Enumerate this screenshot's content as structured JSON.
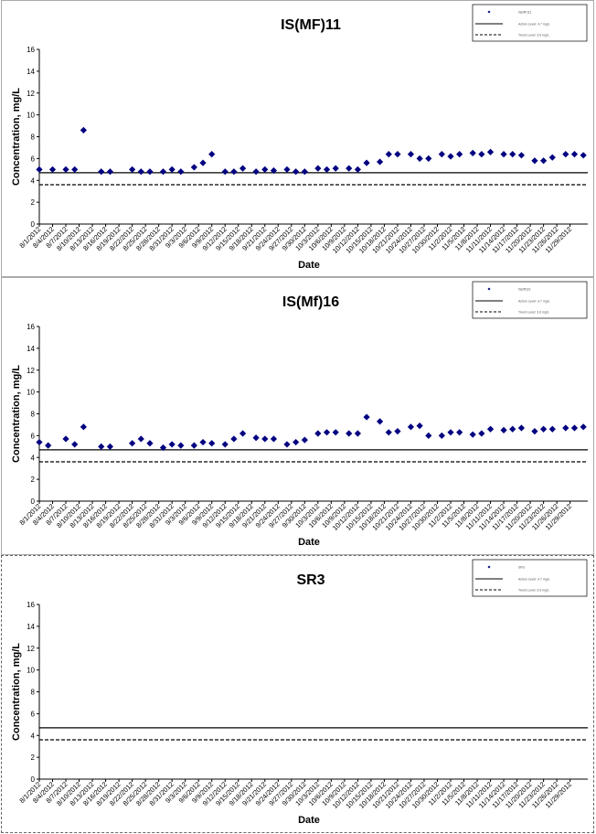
{
  "dates": [
    "8/1/2012",
    "8/4/2012",
    "8/7/2012",
    "8/10/2012",
    "8/13/2012",
    "8/16/2012",
    "8/19/2012",
    "8/22/2012",
    "8/25/2012",
    "8/28/2012",
    "8/31/2012",
    "9/3/2012",
    "9/6/2012",
    "9/9/2012",
    "9/12/2012",
    "9/15/2012",
    "9/18/2012",
    "9/21/2012",
    "9/24/2012",
    "9/27/2012",
    "9/30/2012",
    "10/3/2012",
    "10/6/2012",
    "10/9/2012",
    "10/12/2012",
    "10/15/2012",
    "10/18/2012",
    "10/21/2012",
    "10/24/2012",
    "10/27/2012",
    "10/30/2012",
    "11/2/2012",
    "11/5/2012",
    "11/8/2012",
    "11/11/2012",
    "11/14/2012",
    "11/17/2012",
    "11/20/2012",
    "11/23/2012",
    "11/26/2012",
    "11/29/2012"
  ],
  "chart_data": [
    {
      "type": "scatter",
      "title": "IS(MF)11",
      "xlabel": "Date",
      "ylabel": "Concentration, mg/L",
      "ylim": [
        0,
        16
      ],
      "yticks": [
        0,
        2,
        4,
        6,
        8,
        10,
        12,
        14,
        16
      ],
      "x_axis": "dates 8/1/2012 – 11/30/2012, tick labels every 3 days",
      "legend_position": "top-right",
      "legend": [
        "IS(MF)11",
        "Action Level: 4.7 mg/L",
        "Trend Level: 3.6 mg/L"
      ],
      "series": [
        {
          "name": "IS(MF)11",
          "marker": "diamond",
          "color": "#000080",
          "points": [
            [
              "8/1/2012",
              5.0
            ],
            [
              "8/4/2012",
              5.0
            ],
            [
              "8/7/2012",
              5.0
            ],
            [
              "8/9/2012",
              5.0
            ],
            [
              "8/11/2012",
              8.6
            ],
            [
              "8/15/2012",
              4.8
            ],
            [
              "8/17/2012",
              4.8
            ],
            [
              "8/22/2012",
              5.0
            ],
            [
              "8/24/2012",
              4.8
            ],
            [
              "8/26/2012",
              4.8
            ],
            [
              "8/29/2012",
              4.8
            ],
            [
              "8/31/2012",
              5.0
            ],
            [
              "9/2/2012",
              4.8
            ],
            [
              "9/5/2012",
              5.2
            ],
            [
              "9/7/2012",
              5.6
            ],
            [
              "9/9/2012",
              6.4
            ],
            [
              "9/12/2012",
              4.8
            ],
            [
              "9/14/2012",
              4.8
            ],
            [
              "9/16/2012",
              5.1
            ],
            [
              "9/19/2012",
              4.8
            ],
            [
              "9/21/2012",
              5.0
            ],
            [
              "9/23/2012",
              4.9
            ],
            [
              "9/26/2012",
              5.0
            ],
            [
              "9/28/2012",
              4.8
            ],
            [
              "9/30/2012",
              4.8
            ],
            [
              "10/3/2012",
              5.1
            ],
            [
              "10/5/2012",
              5.0
            ],
            [
              "10/7/2012",
              5.1
            ],
            [
              "10/10/2012",
              5.1
            ],
            [
              "10/12/2012",
              5.0
            ],
            [
              "10/14/2012",
              5.6
            ],
            [
              "10/17/2012",
              5.7
            ],
            [
              "10/19/2012",
              6.4
            ],
            [
              "10/21/2012",
              6.4
            ],
            [
              "10/24/2012",
              6.4
            ],
            [
              "10/26/2012",
              6.0
            ],
            [
              "10/28/2012",
              6.0
            ],
            [
              "10/31/2012",
              6.4
            ],
            [
              "11/2/2012",
              6.2
            ],
            [
              "11/4/2012",
              6.4
            ],
            [
              "11/7/2012",
              6.5
            ],
            [
              "11/9/2012",
              6.4
            ],
            [
              "11/11/2012",
              6.6
            ],
            [
              "11/14/2012",
              6.4
            ],
            [
              "11/16/2012",
              6.4
            ],
            [
              "11/18/2012",
              6.3
            ],
            [
              "11/21/2012",
              5.8
            ],
            [
              "11/23/2012",
              5.8
            ],
            [
              "11/25/2012",
              6.1
            ],
            [
              "11/28/2012",
              6.4
            ],
            [
              "11/30/2012",
              6.4
            ],
            [
              "12/2/2012",
              6.3
            ]
          ]
        },
        {
          "name": "Action Level: 4.7 mg/L",
          "style": "solid",
          "color": "#000000",
          "value": 4.7
        },
        {
          "name": "Trend Level: 3.6 mg/L",
          "style": "dashed",
          "color": "#000000",
          "value": 3.6
        }
      ]
    },
    {
      "type": "scatter",
      "title": "IS(Mf)16",
      "xlabel": "Date",
      "ylabel": "Concentration, mg/L",
      "ylim": [
        0,
        16
      ],
      "yticks": [
        0,
        2,
        4,
        6,
        8,
        10,
        12,
        14,
        16
      ],
      "x_axis": "dates 8/1/2012 – 11/30/2012, tick labels every 3 days",
      "legend_position": "top-right",
      "legend": [
        "IS(Mf)16",
        "Action Level: 4.7 mg/L",
        "Trend Level: 3.6 mg/L"
      ],
      "series": [
        {
          "name": "IS(Mf)16",
          "marker": "diamond",
          "color": "#000080",
          "points": [
            [
              "8/1/2012",
              5.4
            ],
            [
              "8/3/2012",
              5.1
            ],
            [
              "8/7/2012",
              5.7
            ],
            [
              "8/9/2012",
              5.2
            ],
            [
              "8/11/2012",
              6.8
            ],
            [
              "8/15/2012",
              5.0
            ],
            [
              "8/17/2012",
              5.0
            ],
            [
              "8/22/2012",
              5.3
            ],
            [
              "8/24/2012",
              5.7
            ],
            [
              "8/26/2012",
              5.3
            ],
            [
              "8/29/2012",
              4.9
            ],
            [
              "8/31/2012",
              5.2
            ],
            [
              "9/2/2012",
              5.1
            ],
            [
              "9/5/2012",
              5.1
            ],
            [
              "9/7/2012",
              5.4
            ],
            [
              "9/9/2012",
              5.3
            ],
            [
              "9/12/2012",
              5.2
            ],
            [
              "9/14/2012",
              5.7
            ],
            [
              "9/16/2012",
              6.2
            ],
            [
              "9/19/2012",
              5.8
            ],
            [
              "9/21/2012",
              5.7
            ],
            [
              "9/23/2012",
              5.7
            ],
            [
              "9/26/2012",
              5.2
            ],
            [
              "9/28/2012",
              5.4
            ],
            [
              "9/30/2012",
              5.6
            ],
            [
              "10/3/2012",
              6.2
            ],
            [
              "10/5/2012",
              6.3
            ],
            [
              "10/7/2012",
              6.3
            ],
            [
              "10/10/2012",
              6.2
            ],
            [
              "10/12/2012",
              6.2
            ],
            [
              "10/14/2012",
              7.7
            ],
            [
              "10/17/2012",
              7.3
            ],
            [
              "10/19/2012",
              6.3
            ],
            [
              "10/21/2012",
              6.4
            ],
            [
              "10/24/2012",
              6.8
            ],
            [
              "10/26/2012",
              6.9
            ],
            [
              "10/28/2012",
              6.0
            ],
            [
              "10/31/2012",
              6.0
            ],
            [
              "11/2/2012",
              6.3
            ],
            [
              "11/4/2012",
              6.3
            ],
            [
              "11/7/2012",
              6.1
            ],
            [
              "11/9/2012",
              6.2
            ],
            [
              "11/11/2012",
              6.6
            ],
            [
              "11/14/2012",
              6.5
            ],
            [
              "11/16/2012",
              6.6
            ],
            [
              "11/18/2012",
              6.7
            ],
            [
              "11/21/2012",
              6.4
            ],
            [
              "11/23/2012",
              6.6
            ],
            [
              "11/25/2012",
              6.6
            ],
            [
              "11/28/2012",
              6.7
            ],
            [
              "11/30/2012",
              6.7
            ],
            [
              "12/2/2012",
              6.8
            ]
          ]
        },
        {
          "name": "Action Level: 4.7 mg/L",
          "style": "solid",
          "color": "#000000",
          "value": 4.7
        },
        {
          "name": "Trend Level: 3.6 mg/L",
          "style": "dashed",
          "color": "#000000",
          "value": 3.6
        }
      ]
    },
    {
      "type": "scatter",
      "title": "SR3",
      "xlabel": "Date",
      "ylabel": "Concentration, mg/L",
      "ylim": [
        0,
        16
      ],
      "yticks": [
        0,
        2,
        4,
        6,
        8,
        10,
        12,
        14,
        16
      ],
      "x_axis": "dates 8/1/2012 – 11/30/2012, tick labels every 3 days",
      "legend_position": "top-right",
      "legend": [
        "SR3",
        "Action Level: 4.7 mg/L",
        "Trend Level: 3.6 mg/L"
      ],
      "series": [
        {
          "name": "SR3",
          "marker": "diamond",
          "color": "#000080",
          "points": []
        },
        {
          "name": "Action Level: 4.7 mg/L",
          "style": "solid",
          "color": "#000000",
          "value": 4.7
        },
        {
          "name": "Trend Level: 3.6 mg/L",
          "style": "dashed",
          "color": "#000000",
          "value": 3.6
        }
      ]
    }
  ]
}
